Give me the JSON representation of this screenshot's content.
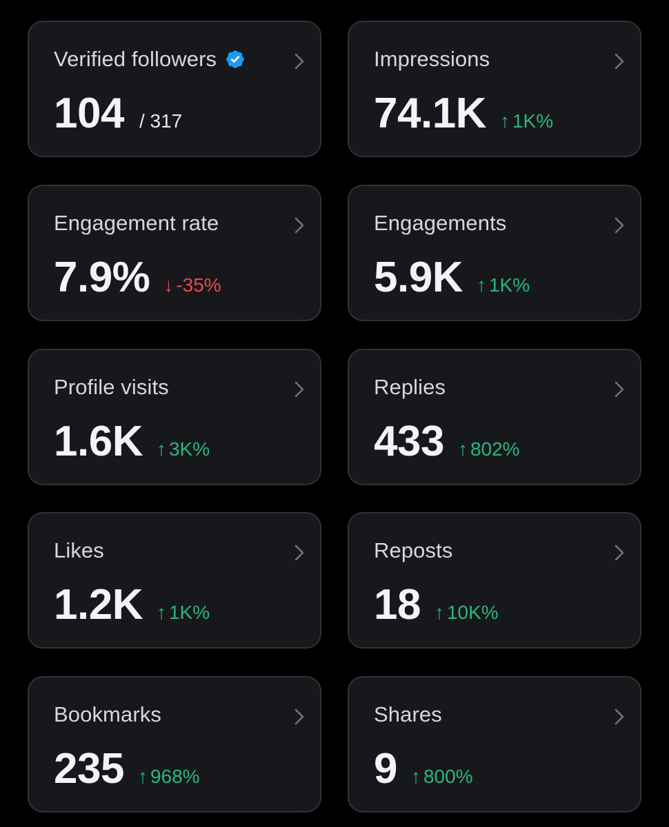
{
  "colors": {
    "background": "#000000",
    "card_bg": "#16181c",
    "card_border": "#2f3336",
    "label": "#d6d9db",
    "value": "#f2f4f5",
    "positive": "#2cb67d",
    "negative": "#e8484f",
    "verified_badge": "#1d9bf0"
  },
  "cards": [
    {
      "label": "Verified followers",
      "value": "104",
      "sub_value": "/ 317",
      "verified": true
    },
    {
      "label": "Impressions",
      "value": "74.1K",
      "change": "1K%",
      "direction": "up"
    },
    {
      "label": "Engagement rate",
      "value": "7.9%",
      "change": "-35%",
      "direction": "down"
    },
    {
      "label": "Engagements",
      "value": "5.9K",
      "change": "1K%",
      "direction": "up"
    },
    {
      "label": "Profile visits",
      "value": "1.6K",
      "change": "3K%",
      "direction": "up"
    },
    {
      "label": "Replies",
      "value": "433",
      "change": "802%",
      "direction": "up"
    },
    {
      "label": "Likes",
      "value": "1.2K",
      "change": "1K%",
      "direction": "up"
    },
    {
      "label": "Reposts",
      "value": "18",
      "change": "10K%",
      "direction": "up"
    },
    {
      "label": "Bookmarks",
      "value": "235",
      "change": "968%",
      "direction": "up"
    },
    {
      "label": "Shares",
      "value": "9",
      "change": "800%",
      "direction": "up"
    }
  ]
}
